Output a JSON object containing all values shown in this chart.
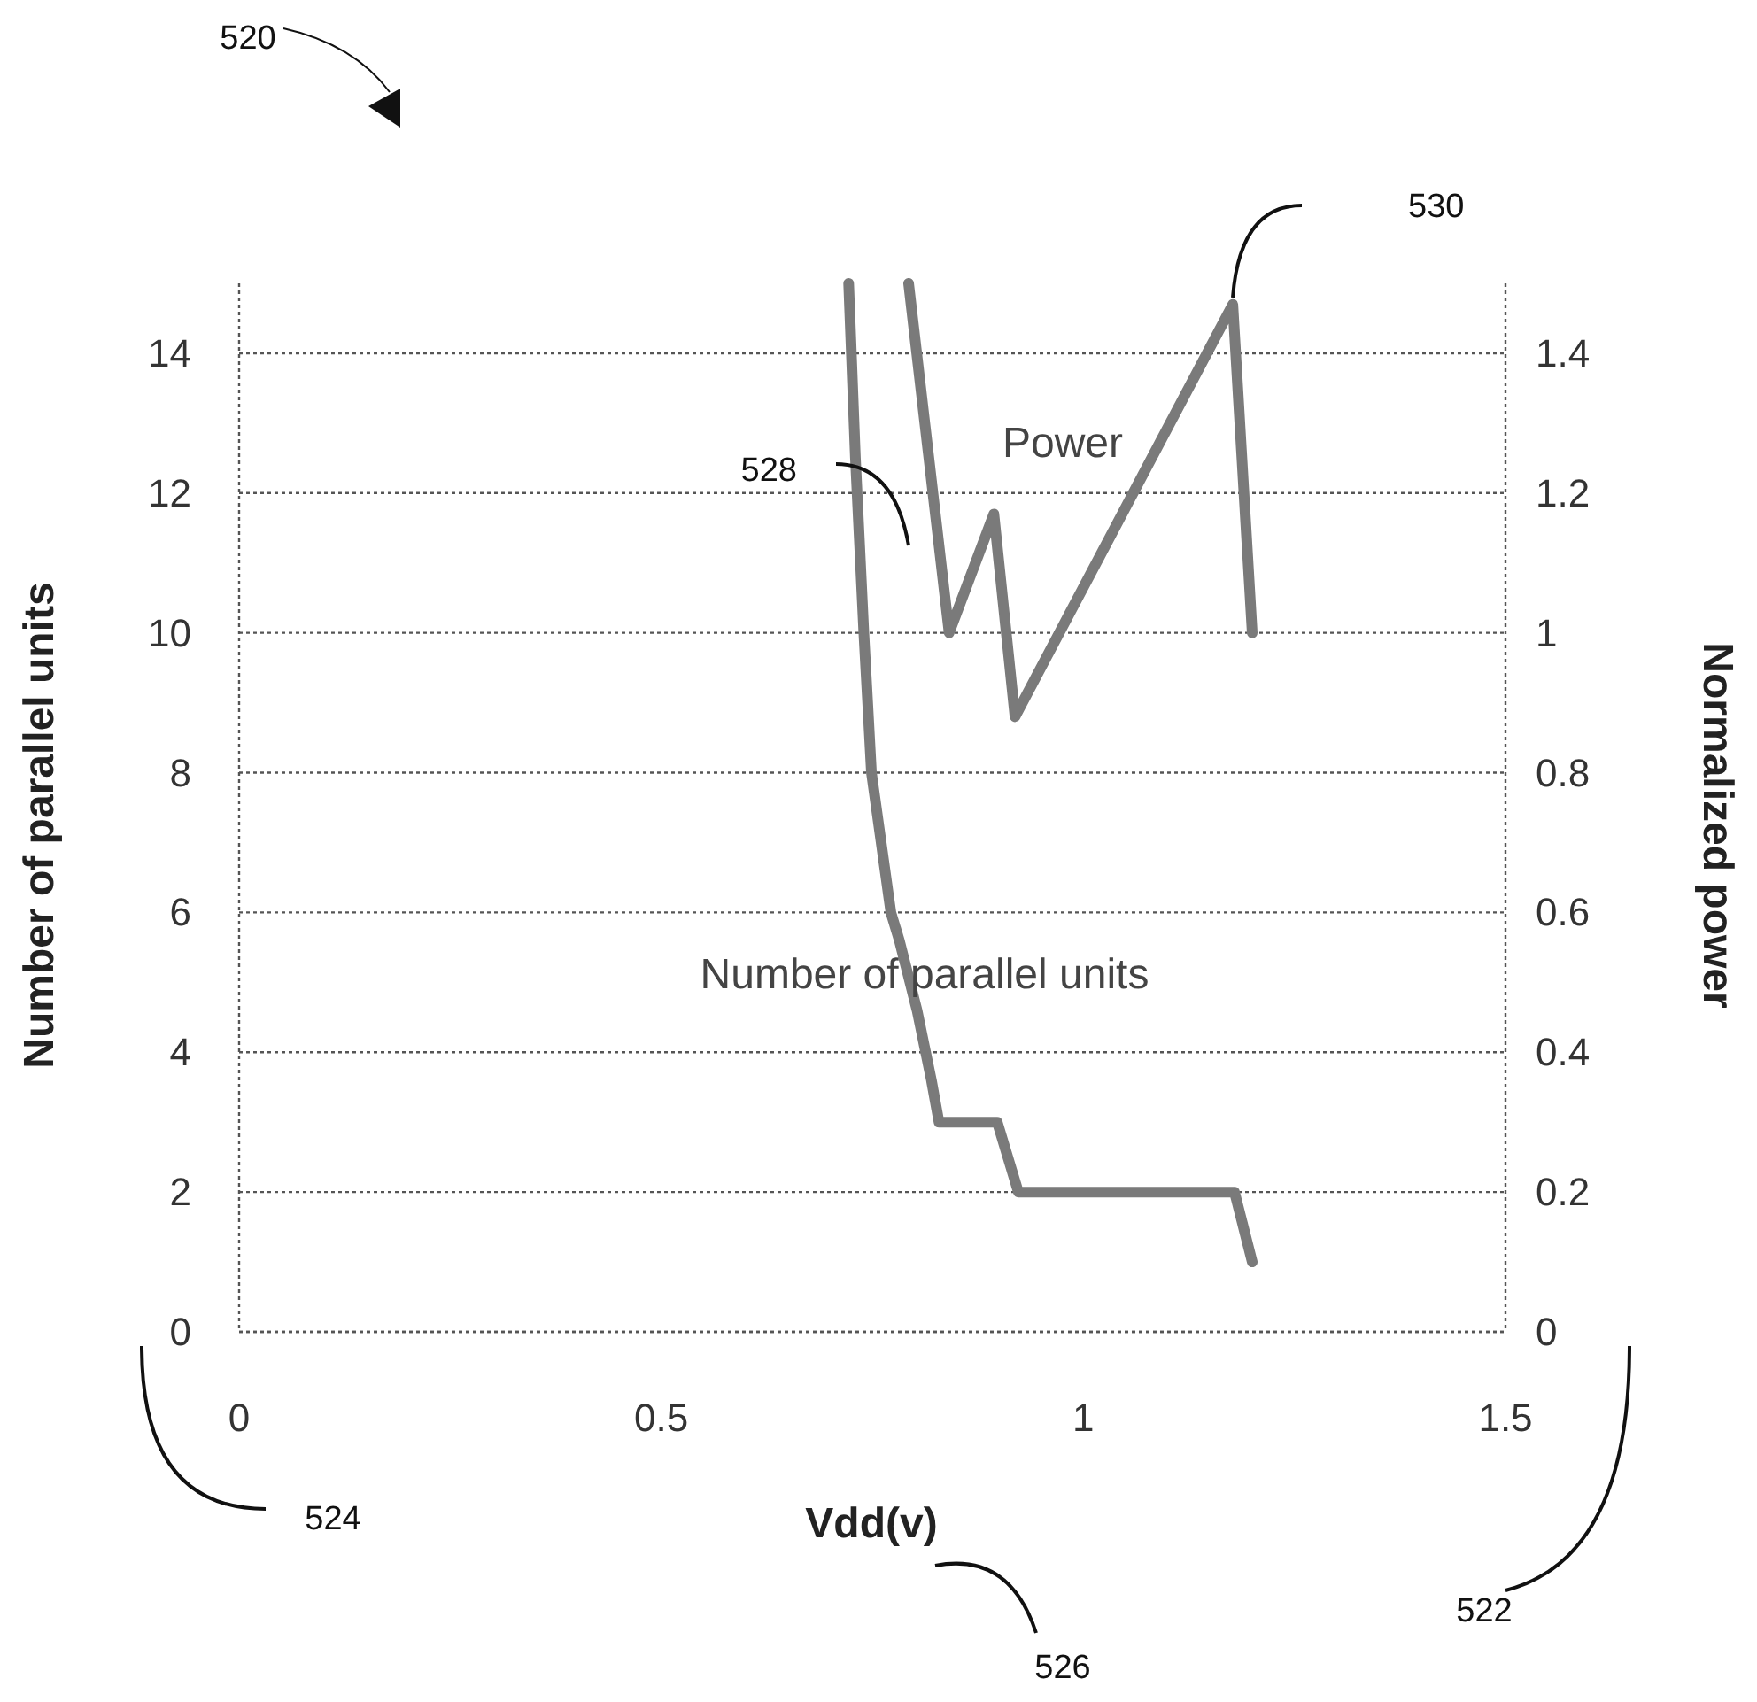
{
  "chart_data": {
    "type": "line",
    "xlabel": "Vdd(v)",
    "ylabel": "Number of parallel units",
    "y2label": "Normalized power",
    "xlim": [
      0,
      1.5
    ],
    "xticks": [
      0,
      0.5,
      1,
      1.5
    ],
    "ylim": [
      0,
      15
    ],
    "yticks": [
      0,
      2,
      4,
      6,
      8,
      10,
      12,
      14
    ],
    "y2lim": [
      0,
      1.5
    ],
    "y2ticks": [
      0,
      0.2,
      0.4,
      0.6,
      0.8,
      1,
      1.2,
      1.4
    ],
    "grid": "y",
    "line_style": "solid",
    "series": [
      {
        "name": "Number of parallel units",
        "color": "#7a7a7a",
        "x": [
          0.722,
          0.73,
          0.74,
          0.749,
          0.772,
          0.782,
          0.803,
          0.82,
          0.829,
          0.898,
          0.923,
          1.179,
          1.2
        ],
        "values": [
          15,
          12.5,
          10,
          8,
          6,
          5.6,
          4.6,
          3.6,
          3,
          3,
          2,
          2,
          1
        ]
      },
      {
        "name": "Power",
        "color": "#7a7a7a",
        "axis": "y2",
        "x": [
          0.793,
          0.841,
          0.894,
          0.919,
          1.177,
          1.2
        ],
        "values": [
          1.5,
          1.0,
          1.17,
          0.88,
          1.47,
          1.0
        ]
      }
    ],
    "annotations": [
      "520",
      "522",
      "524",
      "526",
      "528",
      "530"
    ]
  }
}
